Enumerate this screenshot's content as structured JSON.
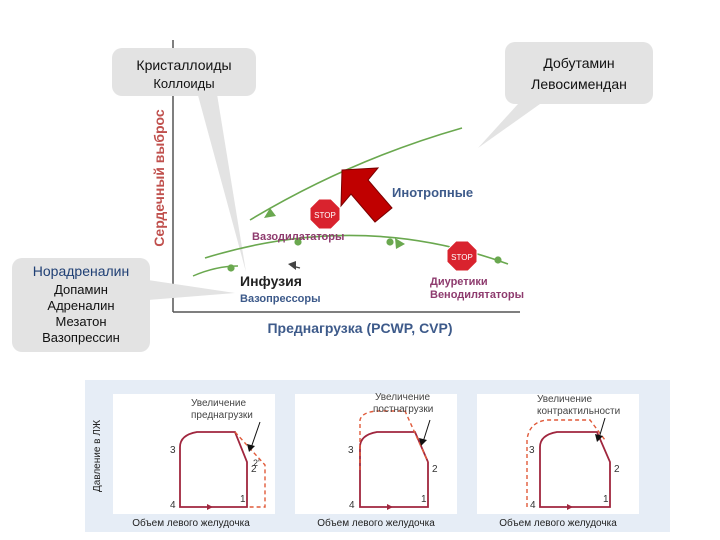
{
  "top_diagram": {
    "y_axis_label": "Сердечный выброс",
    "x_axis_label": "Преднагрузка (PCWP, CVP)",
    "label_inotropic": "Инотропные",
    "label_vasodilators": "Вазодилататоры",
    "label_infusion": "Инфузия",
    "label_vasopressors": "Вазопрессоры",
    "label_diuretics": "Диуретики",
    "label_venodilators": "Венодилятаторы",
    "stop_label": "STOP",
    "callout_left_line1": "Кристаллоиды",
    "callout_left_line2": "Коллоиды",
    "callout_right_line1": "Добутамин",
    "callout_right_line2": "Левосимендан",
    "callout_bottom_line1": "Норадреналин",
    "callout_bottom_line2": "Допамин",
    "callout_bottom_line3": "Адреналин",
    "callout_bottom_line4": "Мезатон",
    "callout_bottom_line5": "Вазопрессин",
    "colors": {
      "curve_green": "#6aa84f",
      "axis_text_red": "#c0504d",
      "label_blue": "#3d5a8a",
      "label_purple": "#8e3b6e",
      "stop_red": "#d9232e",
      "arrow_red": "#c00000"
    }
  },
  "loops": {
    "y_axis_label": "Давление в ЛЖ",
    "panels": [
      {
        "note_line1": "Увеличение",
        "note_line2": "преднагрузки",
        "x_label": "Объем левого желудочка",
        "pt1": "1",
        "pt2": "2",
        "pt2p": "2'",
        "pt3": "3",
        "pt4": "4"
      },
      {
        "note_line1": "Увеличение",
        "note_line2": "постнагрузки",
        "x_label": "Объем левого желудочка",
        "pt1": "1",
        "pt2": "2",
        "pt3": "3",
        "pt4": "4"
      },
      {
        "note_line1": "Увеличение",
        "note_line2": "контрактильности",
        "x_label": "Объем левого желудочка",
        "pt1": "1",
        "pt2": "2",
        "pt3": "3",
        "pt4": "4"
      }
    ]
  }
}
